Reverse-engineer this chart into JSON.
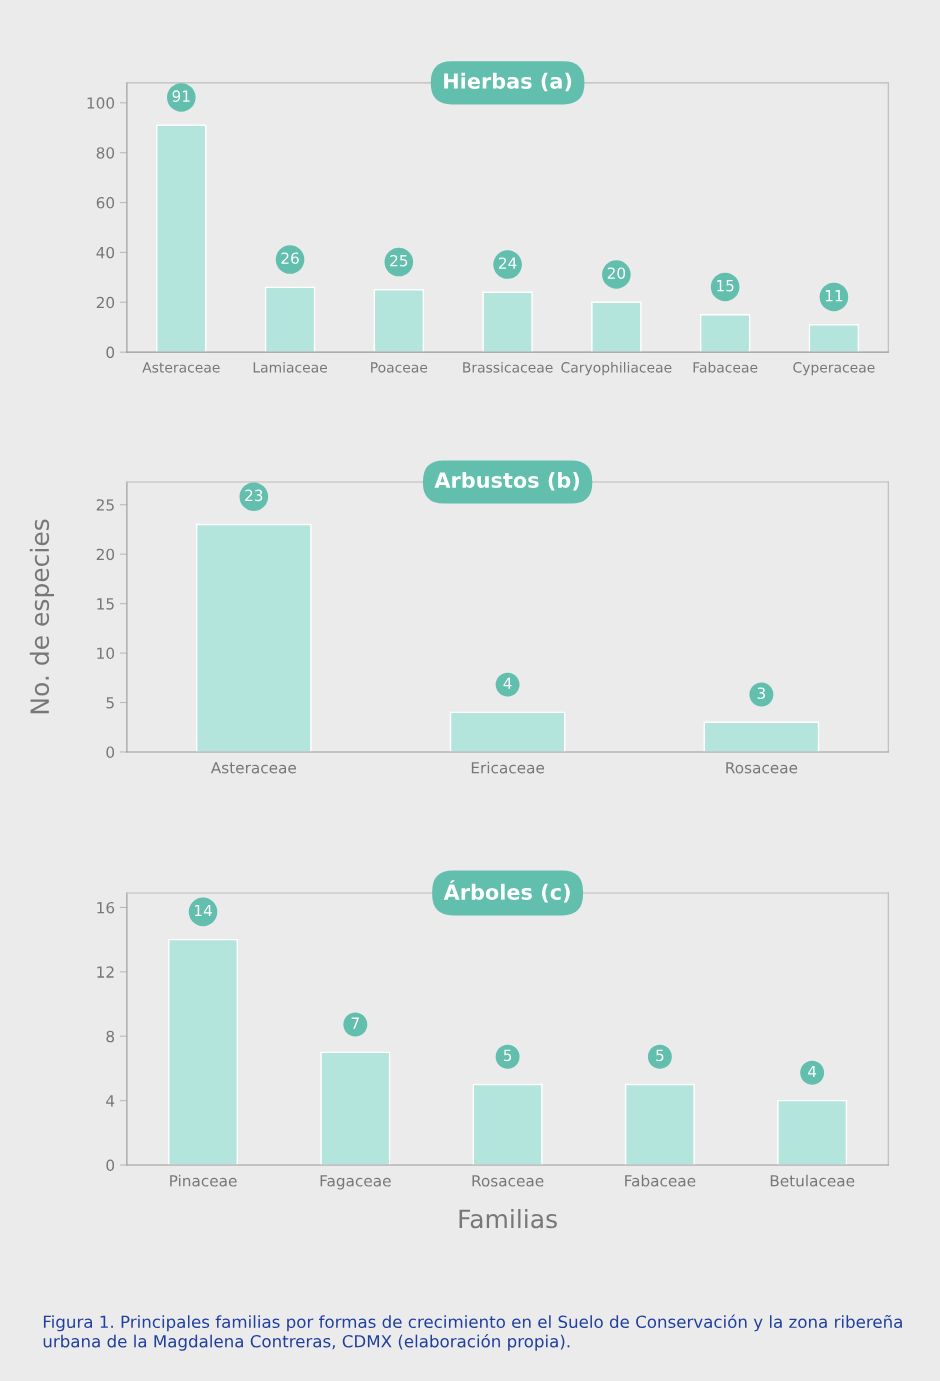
{
  "chart_data": [
    {
      "type": "bar",
      "title": "Hierbas (a)",
      "categories": [
        "Asteraceae",
        "Lamiaceae",
        "Poaceae",
        "Brassicaceae",
        "Caryophiliaceae",
        "Fabaceae",
        "Cyperaceae"
      ],
      "values": [
        91,
        26,
        25,
        24,
        20,
        15,
        11
      ],
      "color": "#b3e5dc",
      "ylim": [
        0,
        108
      ],
      "yticks": [
        0,
        20,
        40,
        60,
        80,
        100
      ],
      "data_labels": true,
      "grid": false,
      "legend": false
    },
    {
      "type": "bar",
      "title": "Arbustos (b)",
      "ylabel": "No. de especies",
      "categories": [
        "Asteraceae",
        "Ericaceae",
        "Rosaceae"
      ],
      "values": [
        23,
        4,
        3
      ],
      "color": "#b3e5dc",
      "ylim": [
        0,
        27.3
      ],
      "yticks": [
        0,
        5,
        10,
        15,
        20,
        25
      ],
      "data_labels": true,
      "grid": false,
      "legend": false
    },
    {
      "type": "bar",
      "title": "Árboles (c)",
      "xlabel": "Familias",
      "categories": [
        "Pinaceae",
        "Fagaceae",
        "Rosaceae",
        "Fabaceae",
        "Betulaceae"
      ],
      "values": [
        14,
        7,
        5,
        5,
        4
      ],
      "color": "#b3e5dc",
      "ylim": [
        0,
        16.9
      ],
      "yticks": [
        0,
        4,
        8,
        12,
        16
      ],
      "data_labels": true,
      "grid": false,
      "legend": false,
      "annotations": [
        "Figura 1. Principales familias por formas de crecimiento en el Suelo de Conservación y la zona ribereña urbana de la Magdalena Contreras, CDMX (elaboración propia)."
      ]
    }
  ]
}
